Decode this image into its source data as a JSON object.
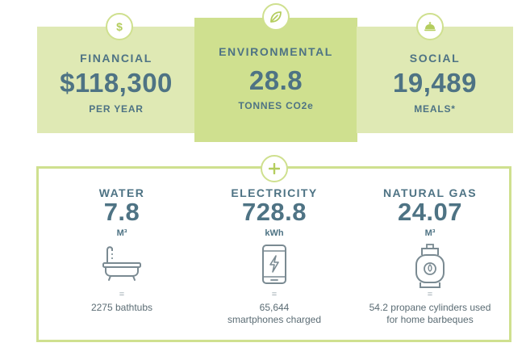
{
  "impact": {
    "financial": {
      "title": "FINANCIAL",
      "value": "$118,300",
      "unit": "PER YEAR",
      "icon": "dollar-icon"
    },
    "environmental": {
      "title": "ENVIRONMENTAL",
      "value": "28.8",
      "unit": "TONNES CO2e",
      "icon": "leaf-icon"
    },
    "social": {
      "title": "SOCIAL",
      "value": "19,489",
      "unit": "MEALS*",
      "icon": "cloche-icon"
    }
  },
  "utilities": {
    "badge_icon": "plus-icon",
    "water": {
      "title": "WATER",
      "value": "7.8",
      "unit": "M³",
      "equals": "=",
      "description": "2275 bathtubs",
      "icon": "bathtub-icon"
    },
    "electricity": {
      "title": "ELECTRICITY",
      "value": "728.8",
      "unit": "kWh",
      "equals": "=",
      "description_line1": "65,644",
      "description_line2": "smartphones charged",
      "icon": "smartphone-icon"
    },
    "natural_gas": {
      "title": "NATURAL GAS",
      "value": "24.07",
      "unit": "M³",
      "equals": "=",
      "description_line1": "54.2 propane cylinders used",
      "description_line2": "for home barbeques",
      "icon": "propane-tank-icon"
    }
  },
  "colors": {
    "light_green": "#dfe9b4",
    "accent_green": "#cfe08f",
    "text_teal": "#4e7384",
    "icon_grey": "#7a8a92"
  }
}
